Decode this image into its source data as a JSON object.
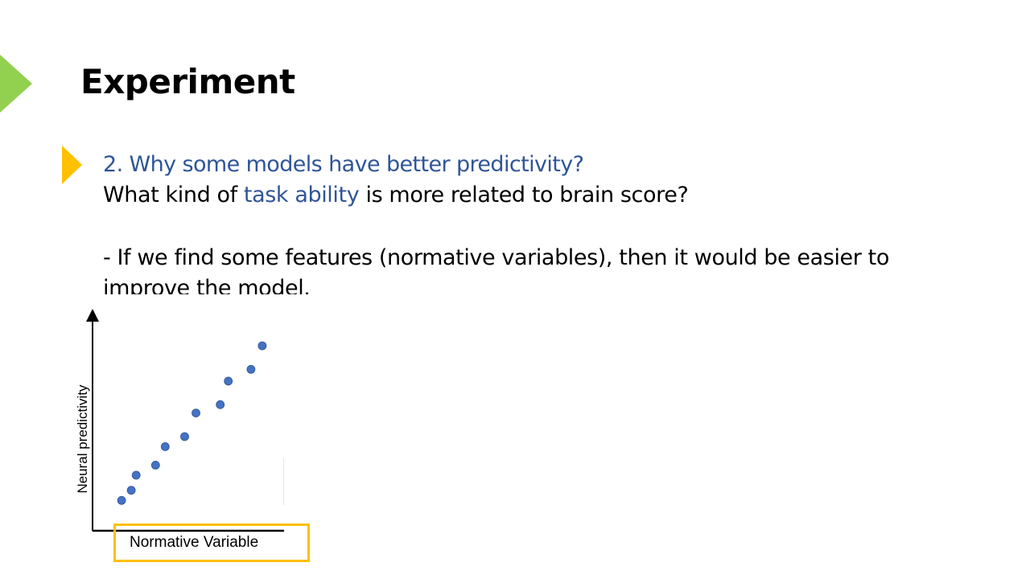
{
  "slide": {
    "title": "Experiment",
    "title_marker_color": "#92d050",
    "bullet_marker_color": "#ffc000",
    "question": "2. Why some models have better predictivity?",
    "line2_pre": "What kind of ",
    "line2_highlight": "task ability",
    "line2_post": " is more related to brain score?",
    "note_line1": "- If we find some features (normative variables), then it would be easier to",
    "note_line2": "improve the model.",
    "accent_color": "#2f5597"
  },
  "chart_data": {
    "type": "scatter",
    "xlabel": "Normative Variable",
    "ylabel": "Neural predictivity",
    "xlim": [
      0,
      10
    ],
    "ylim": [
      0,
      10
    ],
    "grid": false,
    "legend": "none",
    "point_color": "#4472c4",
    "highlight_box_color": "#ffc000",
    "points": [
      {
        "x": 0.8,
        "y": 0.8
      },
      {
        "x": 1.4,
        "y": 1.4
      },
      {
        "x": 1.7,
        "y": 2.3
      },
      {
        "x": 2.9,
        "y": 2.9
      },
      {
        "x": 3.5,
        "y": 4.0
      },
      {
        "x": 4.7,
        "y": 4.6
      },
      {
        "x": 5.4,
        "y": 6.0
      },
      {
        "x": 6.9,
        "y": 6.5
      },
      {
        "x": 7.4,
        "y": 7.9
      },
      {
        "x": 8.8,
        "y": 8.6
      },
      {
        "x": 9.5,
        "y": 10.0
      }
    ]
  }
}
